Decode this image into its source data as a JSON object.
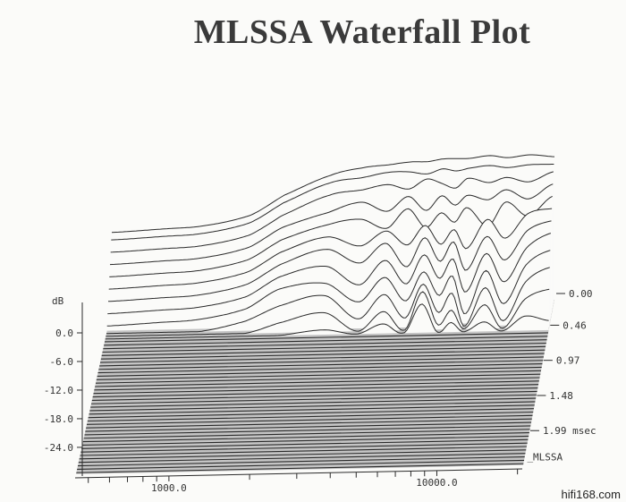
{
  "chart_data": {
    "type": "line",
    "subtype": "waterfall",
    "title": "MLSSA Waterfall Plot",
    "ylabel": "dB",
    "x_scale": "log",
    "xlim": [
      450,
      21000
    ],
    "ylim": [
      -30,
      0
    ],
    "x_tick_labels": [
      "1000.0",
      "10000.0"
    ],
    "x_ticks": [
      500,
      600,
      700,
      800,
      900,
      1000,
      2000,
      3000,
      4000,
      5000,
      6000,
      7000,
      8000,
      9000,
      10000,
      20000
    ],
    "y_tick_labels": [
      "0.0",
      "-6.0",
      "-12.0",
      "-18.0",
      "-24.0"
    ],
    "y_ticks": [
      0,
      -6,
      -12,
      -18,
      -24
    ],
    "time_tick_labels": [
      "0.00",
      "0.46",
      "0.97",
      "1.48",
      "1.99 msec"
    ],
    "time_ticks": [
      0.0,
      0.46,
      0.97,
      1.48,
      1.99
    ],
    "time_unit": "msec",
    "time_range": [
      0,
      2.4
    ],
    "instrument_label": "MLSSA",
    "grid": false,
    "x": [
      450,
      700,
      1000,
      1500,
      2000,
      3000,
      4000,
      5000,
      6000,
      7000,
      8000,
      9000,
      10000,
      12000,
      14000,
      17000,
      21000
    ],
    "series": [
      {
        "time": 0.0,
        "values": [
          -14,
          -13.5,
          -13,
          -11,
          -7,
          -3,
          -1.5,
          -1,
          -0.5,
          -0.5,
          0,
          0,
          0,
          0.5,
          0,
          0.5,
          0
        ]
      },
      {
        "time": 0.04,
        "values": [
          -15,
          -14.5,
          -14,
          -12,
          -8,
          -4,
          -3,
          -2,
          -2,
          -2.5,
          -1.5,
          -2,
          -1.5,
          -1,
          -1.5,
          -1,
          -1
        ]
      },
      {
        "time": 0.08,
        "values": [
          -17,
          -16.5,
          -16,
          -14,
          -10,
          -6,
          -5,
          -4,
          -5,
          -3,
          -4,
          -5,
          -3,
          -4,
          -3,
          -4,
          -2
        ]
      },
      {
        "time": 0.12,
        "values": [
          -19,
          -18.5,
          -18,
          -16,
          -12,
          -9,
          -7,
          -9,
          -6,
          -9,
          -6,
          -8,
          -6,
          -7,
          -5,
          -7,
          -4
        ]
      },
      {
        "time": 0.16,
        "values": [
          -21,
          -20.5,
          -20,
          -18,
          -14,
          -11,
          -10,
          -12,
          -8,
          -12,
          -9,
          -11,
          -8,
          -12,
          -7,
          -10,
          -6
        ]
      },
      {
        "time": 0.2,
        "values": [
          -23,
          -22.5,
          -22,
          -20,
          -16,
          -13,
          -15,
          -12,
          -15,
          -11,
          -15,
          -12,
          -16,
          -10,
          -14,
          -9,
          -8
        ]
      },
      {
        "time": 0.24,
        "values": [
          -25,
          -24.5,
          -24,
          -22,
          -18,
          -15,
          -18,
          -14,
          -19,
          -13,
          -18,
          -14,
          -20,
          -13,
          -18,
          -12,
          -10
        ]
      },
      {
        "time": 0.28,
        "values": [
          -27,
          -26.5,
          -26,
          -24,
          -20,
          -18,
          -22,
          -17,
          -22,
          -16,
          -21,
          -17,
          -24,
          -16,
          -22,
          -15,
          -12
        ]
      },
      {
        "time": 0.32,
        "values": [
          -29,
          -28.5,
          -28,
          -26,
          -22,
          -21,
          -25,
          -20,
          -25,
          -19,
          -24,
          -20,
          -28,
          -19,
          -26,
          -18,
          -15
        ]
      },
      {
        "time": 0.36,
        "values": [
          -30,
          -30,
          -30,
          -28,
          -25,
          -23,
          -28,
          -23,
          -28,
          -21,
          -27,
          -23,
          -30,
          -22,
          -29,
          -21,
          -18
        ]
      },
      {
        "time": 0.4,
        "values": [
          -30,
          -30,
          -30,
          -30,
          -28,
          -26,
          -30,
          -26,
          -30,
          -22,
          -29,
          -26,
          -30,
          -25,
          -30,
          -24,
          -22
        ]
      },
      {
        "time": 0.44,
        "values": [
          -30,
          -30,
          -30,
          -30,
          -30,
          -29,
          -30,
          -28,
          -30,
          -24,
          -30,
          -28,
          -30,
          -28,
          -30,
          -27,
          -28
        ]
      }
    ],
    "noise_floor_db": -30,
    "noise_floor_time_step_ms": 0.05,
    "colors": {
      "ink": "#2a2a2a",
      "floor": "#c4c4c4",
      "paper": "#fbfbf9"
    }
  },
  "watermark": "hifi168.com"
}
